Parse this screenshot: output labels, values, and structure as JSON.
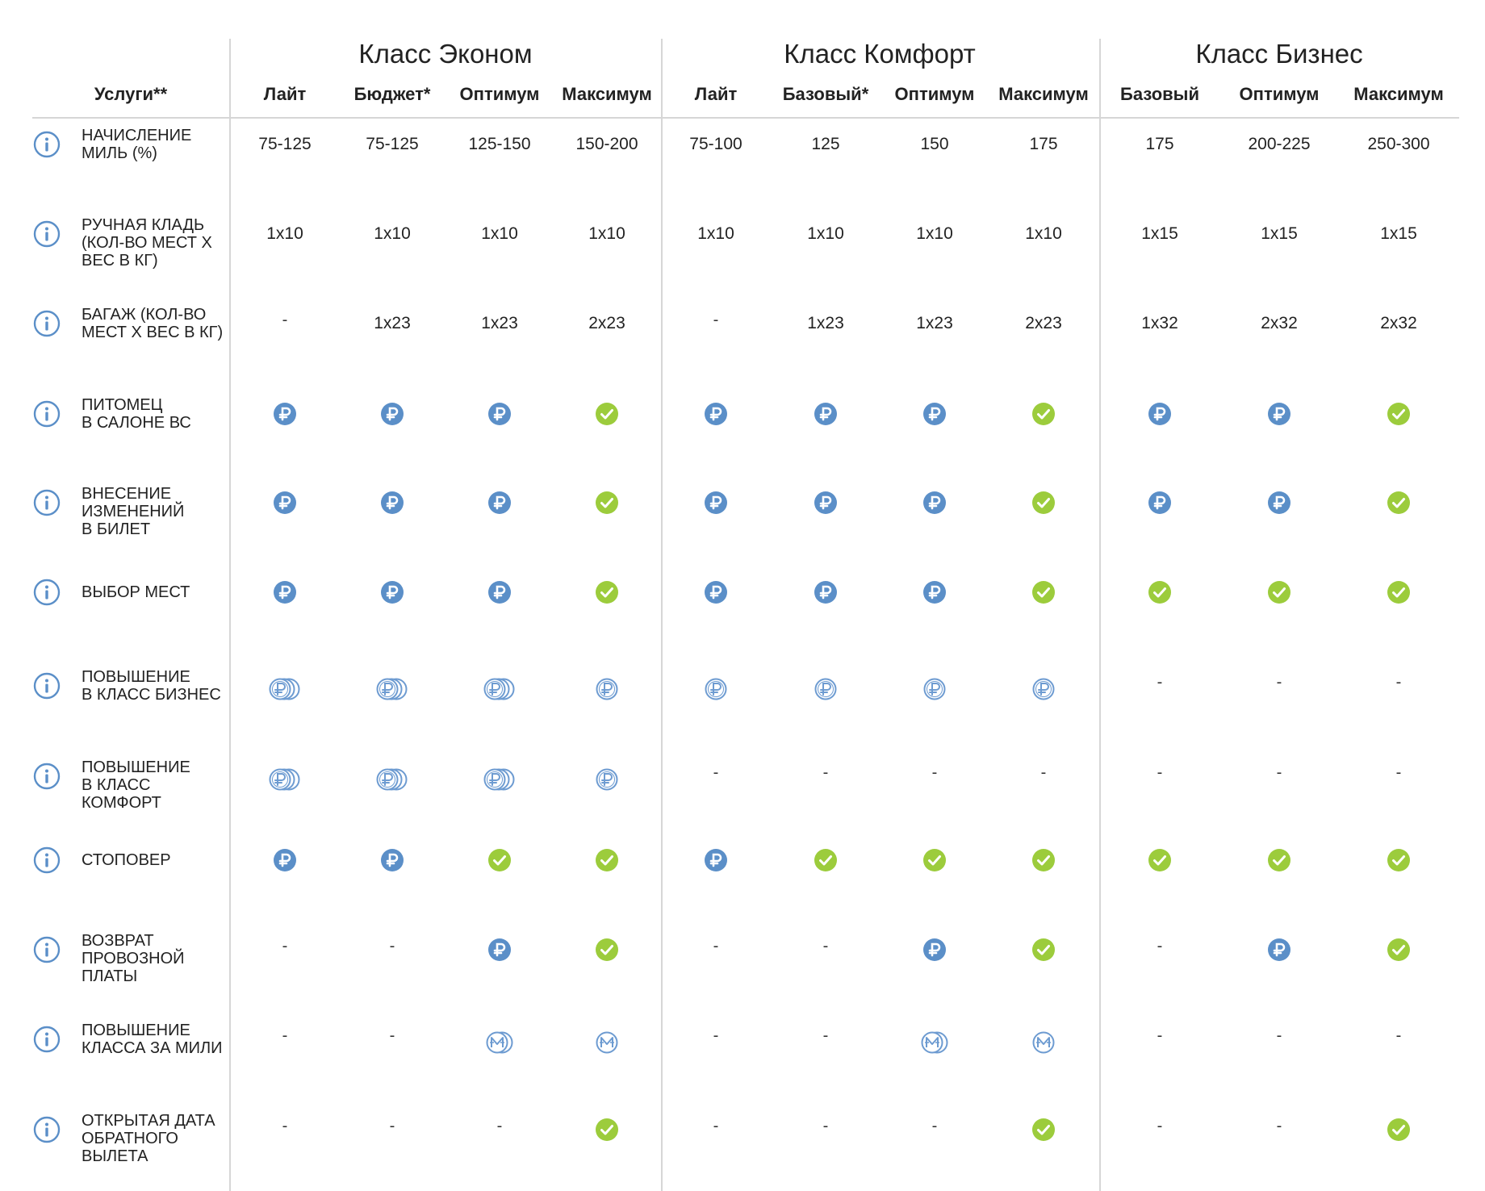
{
  "header": {
    "services_label": "Услуги**",
    "classes": [
      {
        "title": "Класс Эконом",
        "tariffs": [
          "Лайт",
          "Бюджет*",
          "Оптимум",
          "Максимум"
        ]
      },
      {
        "title": "Класс Комфорт",
        "tariffs": [
          "Лайт",
          "Базовый*",
          "Оптимум",
          "Максимум"
        ]
      },
      {
        "title": "Класс Бизнес",
        "tariffs": [
          "Базовый",
          "Оптимум",
          "Максимум"
        ]
      }
    ]
  },
  "legend": {
    "included_icon": "check-circle-icon",
    "paid_icon": "ruble-coin-icon",
    "paid_multi_icon": "ruble-coins-stack-icon",
    "paid_single_outline_icon": "ruble-outline-icon",
    "miles_stack_icon": "miles-coins-stack-icon",
    "miles_icon": "miles-outline-icon",
    "info_icon": "info-circle-icon",
    "colors": {
      "included": "#9ccc3c",
      "paid": "#5b8fc8",
      "outline": "#6d9bd1",
      "text": "#222222",
      "divider": "#d6d6d6"
    }
  },
  "rows": [
    {
      "label": "НАЧИСЛЕНИЕ МИЛЬ (%)",
      "lines": [
        "НАЧИСЛЕНИЕ",
        "МИЛЬ (%)"
      ],
      "cells": [
        {
          "type": "text",
          "value": "75-125"
        },
        {
          "type": "text",
          "value": "75-125"
        },
        {
          "type": "text",
          "value": "125-150"
        },
        {
          "type": "text",
          "value": "150-200"
        },
        {
          "type": "text",
          "value": "75-100"
        },
        {
          "type": "text",
          "value": "125"
        },
        {
          "type": "text",
          "value": "150"
        },
        {
          "type": "text",
          "value": "175"
        },
        {
          "type": "text",
          "value": "175"
        },
        {
          "type": "text",
          "value": "200-225"
        },
        {
          "type": "text",
          "value": "250-300"
        }
      ]
    },
    {
      "label": "РУЧНАЯ КЛАДЬ (КОЛ-ВО МЕСТ Х ВЕС В КГ)",
      "lines": [
        "РУЧНАЯ КЛАДЬ",
        "(КОЛ-ВО МЕСТ Х",
        "ВЕС В КГ)"
      ],
      "cells": [
        {
          "type": "text",
          "value": "1x10"
        },
        {
          "type": "text",
          "value": "1x10"
        },
        {
          "type": "text",
          "value": "1x10"
        },
        {
          "type": "text",
          "value": "1x10"
        },
        {
          "type": "text",
          "value": "1x10"
        },
        {
          "type": "text",
          "value": "1x10"
        },
        {
          "type": "text",
          "value": "1x10"
        },
        {
          "type": "text",
          "value": "1x10"
        },
        {
          "type": "text",
          "value": "1x15"
        },
        {
          "type": "text",
          "value": "1x15"
        },
        {
          "type": "text",
          "value": "1x15"
        }
      ]
    },
    {
      "label": "БАГАЖ (КОЛ-ВО МЕСТ Х ВЕС В КГ)",
      "lines": [
        "БАГАЖ (КОЛ-ВО",
        "МЕСТ Х ВЕС В КГ)"
      ],
      "cells": [
        {
          "type": "dash",
          "value": "-"
        },
        {
          "type": "text",
          "value": "1x23"
        },
        {
          "type": "text",
          "value": "1x23"
        },
        {
          "type": "text",
          "value": "2x23"
        },
        {
          "type": "dash",
          "value": "-"
        },
        {
          "type": "text",
          "value": "1x23"
        },
        {
          "type": "text",
          "value": "1x23"
        },
        {
          "type": "text",
          "value": "2x23"
        },
        {
          "type": "text",
          "value": "1x32"
        },
        {
          "type": "text",
          "value": "2x32"
        },
        {
          "type": "text",
          "value": "2x32"
        }
      ]
    },
    {
      "label": "ПИТОМЕЦ В САЛОНЕ ВС",
      "lines": [
        "ПИТОМЕЦ",
        "В САЛОНЕ ВС"
      ],
      "cells": [
        {
          "type": "paid"
        },
        {
          "type": "paid"
        },
        {
          "type": "paid"
        },
        {
          "type": "check"
        },
        {
          "type": "paid"
        },
        {
          "type": "paid"
        },
        {
          "type": "paid"
        },
        {
          "type": "check"
        },
        {
          "type": "paid"
        },
        {
          "type": "paid"
        },
        {
          "type": "check"
        }
      ]
    },
    {
      "label": "ВНЕСЕНИЕ ИЗМЕНЕНИЙ В БИЛЕТ",
      "lines": [
        "ВНЕСЕНИЕ",
        "ИЗМЕНЕНИЙ",
        "В БИЛЕТ"
      ],
      "cells": [
        {
          "type": "paid"
        },
        {
          "type": "paid"
        },
        {
          "type": "paid"
        },
        {
          "type": "check"
        },
        {
          "type": "paid"
        },
        {
          "type": "paid"
        },
        {
          "type": "paid"
        },
        {
          "type": "check"
        },
        {
          "type": "paid"
        },
        {
          "type": "paid"
        },
        {
          "type": "check"
        }
      ]
    },
    {
      "label": "ВЫБОР МЕСТ",
      "lines": [
        "ВЫБОР МЕСТ"
      ],
      "cells": [
        {
          "type": "paid"
        },
        {
          "type": "paid"
        },
        {
          "type": "paid"
        },
        {
          "type": "check"
        },
        {
          "type": "paid"
        },
        {
          "type": "paid"
        },
        {
          "type": "paid"
        },
        {
          "type": "check"
        },
        {
          "type": "check"
        },
        {
          "type": "check"
        },
        {
          "type": "check"
        }
      ]
    },
    {
      "label": "ПОВЫШЕНИЕ В КЛАСС БИЗНЕС",
      "lines": [
        "ПОВЫШЕНИЕ",
        "В КЛАСС БИЗНЕС"
      ],
      "cells": [
        {
          "type": "coins"
        },
        {
          "type": "coins"
        },
        {
          "type": "coins"
        },
        {
          "type": "coin"
        },
        {
          "type": "coin"
        },
        {
          "type": "coin"
        },
        {
          "type": "coin"
        },
        {
          "type": "coin"
        },
        {
          "type": "dash",
          "value": "-"
        },
        {
          "type": "dash",
          "value": "-"
        },
        {
          "type": "dash",
          "value": "-"
        }
      ]
    },
    {
      "label": "ПОВЫШЕНИЕ В КЛАСС КОМФОРТ",
      "lines": [
        "ПОВЫШЕНИЕ",
        "В КЛАСС",
        "КОМФОРТ"
      ],
      "cells": [
        {
          "type": "coins"
        },
        {
          "type": "coins"
        },
        {
          "type": "coins"
        },
        {
          "type": "coin"
        },
        {
          "type": "dash",
          "value": "-"
        },
        {
          "type": "dash",
          "value": "-"
        },
        {
          "type": "dash",
          "value": "-"
        },
        {
          "type": "dash",
          "value": "-"
        },
        {
          "type": "dash",
          "value": "-"
        },
        {
          "type": "dash",
          "value": "-"
        },
        {
          "type": "dash",
          "value": "-"
        }
      ]
    },
    {
      "label": "СТОПОВЕР",
      "lines": [
        "СТОПОВЕР"
      ],
      "cells": [
        {
          "type": "paid"
        },
        {
          "type": "paid"
        },
        {
          "type": "check"
        },
        {
          "type": "check"
        },
        {
          "type": "paid"
        },
        {
          "type": "check"
        },
        {
          "type": "check"
        },
        {
          "type": "check"
        },
        {
          "type": "check"
        },
        {
          "type": "check"
        },
        {
          "type": "check"
        }
      ]
    },
    {
      "label": "ВОЗВРАТ ПРОВОЗНОЙ ПЛАТЫ",
      "lines": [
        "ВОЗВРАТ",
        "ПРОВОЗНОЙ",
        "ПЛАТЫ"
      ],
      "cells": [
        {
          "type": "dash",
          "value": "-"
        },
        {
          "type": "dash",
          "value": "-"
        },
        {
          "type": "paid"
        },
        {
          "type": "check"
        },
        {
          "type": "dash",
          "value": "-"
        },
        {
          "type": "dash",
          "value": "-"
        },
        {
          "type": "paid"
        },
        {
          "type": "check"
        },
        {
          "type": "dash",
          "value": "-"
        },
        {
          "type": "paid"
        },
        {
          "type": "check"
        }
      ]
    },
    {
      "label": "ПОВЫШЕНИЕ КЛАССА ЗА МИЛИ",
      "lines": [
        "ПОВЫШЕНИЕ",
        "КЛАССА ЗА МИЛИ"
      ],
      "cells": [
        {
          "type": "dash",
          "value": "-"
        },
        {
          "type": "dash",
          "value": "-"
        },
        {
          "type": "miles2"
        },
        {
          "type": "miles"
        },
        {
          "type": "dash",
          "value": "-"
        },
        {
          "type": "dash",
          "value": "-"
        },
        {
          "type": "miles2"
        },
        {
          "type": "miles"
        },
        {
          "type": "dash",
          "value": "-"
        },
        {
          "type": "dash",
          "value": "-"
        },
        {
          "type": "dash",
          "value": "-"
        }
      ]
    },
    {
      "label": "ОТКРЫТАЯ ДАТА ОБРАТНОГО ВЫЛЕТА",
      "lines": [
        "ОТКРЫТАЯ ДАТА",
        "ОБРАТНОГО",
        "ВЫЛЕТА"
      ],
      "cells": [
        {
          "type": "dash",
          "value": "-"
        },
        {
          "type": "dash",
          "value": "-"
        },
        {
          "type": "dash",
          "value": "-"
        },
        {
          "type": "check"
        },
        {
          "type": "dash",
          "value": "-"
        },
        {
          "type": "dash",
          "value": "-"
        },
        {
          "type": "dash",
          "value": "-"
        },
        {
          "type": "check"
        },
        {
          "type": "dash",
          "value": "-"
        },
        {
          "type": "dash",
          "value": "-"
        },
        {
          "type": "check"
        }
      ]
    }
  ]
}
